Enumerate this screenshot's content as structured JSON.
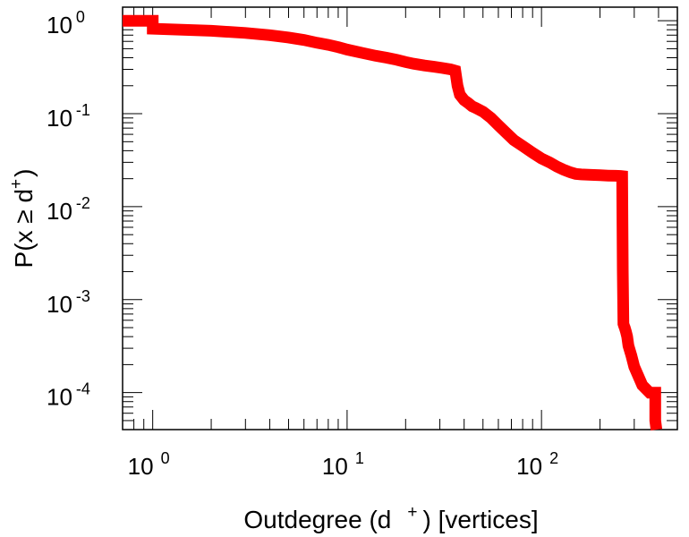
{
  "chart_data": {
    "type": "line",
    "xscale": "log",
    "yscale": "log",
    "xlim": [
      0.7,
      500
    ],
    "ylim": [
      4e-05,
      1.4
    ],
    "grid": false,
    "xlabel": {
      "prefix": "Outdegree (d",
      "superscript": "+",
      "suffix": ") [vertices]"
    },
    "ylabel": {
      "prefix": "P(x ≥ d",
      "superscript": "+",
      "suffix": ")"
    },
    "xticks": [
      {
        "value": 1,
        "base": "10",
        "exp": "0"
      },
      {
        "value": 10,
        "base": "10",
        "exp": "1"
      },
      {
        "value": 100,
        "base": "10",
        "exp": "2"
      }
    ],
    "yticks": [
      {
        "value": 1,
        "base": "10",
        "exp": "0"
      },
      {
        "value": 0.1,
        "base": "10",
        "exp": "-1"
      },
      {
        "value": 0.01,
        "base": "10",
        "exp": "-2"
      },
      {
        "value": 0.001,
        "base": "10",
        "exp": "-3"
      },
      {
        "value": 0.0001,
        "base": "10",
        "exp": "-4"
      }
    ],
    "series": [
      {
        "color": "#ff0000",
        "x": [
          0.7,
          1.0,
          1.0,
          2,
          3,
          4,
          5,
          6,
          7,
          8,
          9,
          10,
          12,
          14,
          16,
          18,
          20,
          22,
          25,
          28,
          31,
          34,
          36,
          37,
          38,
          40,
          42,
          44,
          46,
          50,
          55,
          60,
          66,
          72,
          80,
          90,
          100,
          110,
          120,
          130,
          140,
          150,
          160,
          180,
          200,
          220,
          240,
          255,
          260,
          262,
          264,
          266,
          268,
          272,
          276,
          280,
          290,
          300,
          330,
          360,
          385,
          385,
          390
        ],
        "y": [
          1.0,
          1.0,
          0.82,
          0.78,
          0.74,
          0.7,
          0.66,
          0.62,
          0.58,
          0.55,
          0.52,
          0.49,
          0.45,
          0.42,
          0.4,
          0.38,
          0.36,
          0.345,
          0.33,
          0.32,
          0.31,
          0.3,
          0.29,
          0.2,
          0.16,
          0.14,
          0.13,
          0.12,
          0.115,
          0.105,
          0.09,
          0.075,
          0.062,
          0.052,
          0.045,
          0.038,
          0.033,
          0.03,
          0.027,
          0.025,
          0.0235,
          0.0225,
          0.0222,
          0.022,
          0.0218,
          0.0216,
          0.0215,
          0.0214,
          0.0213,
          0.002,
          0.00055,
          0.00052,
          0.0005,
          0.00045,
          0.0004,
          0.00032,
          0.00025,
          0.00019,
          0.00012,
          0.0001,
          0.0001,
          5e-05,
          4e-05
        ]
      }
    ]
  }
}
